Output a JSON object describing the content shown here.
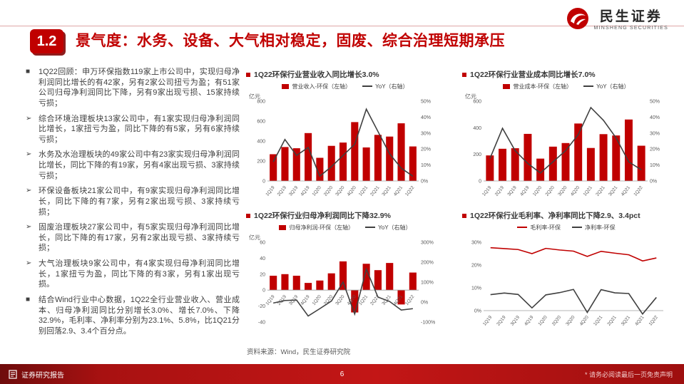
{
  "theme": {
    "accent": "#C00000",
    "bar_color": "#C00000",
    "line_color": "#404040",
    "text_color": "#404040"
  },
  "header": {
    "badge": "1.2",
    "title": "景气度：水务、设备、大气相对稳定，固废、综合治理短期承压",
    "logo": {
      "name": "民生证券",
      "subtitle": "MINSHENG SECURITIES"
    }
  },
  "bullets": [
    {
      "marker": "■",
      "text": "1Q22回顾：申万环保指数119家上市公司中，实现归母净利润同比增长的有42家，另有2家公司扭亏为盈；有51家公司归母净利润同比下降，另有9家出现亏损、15家持续亏损；"
    },
    {
      "marker": "➢",
      "text": "综合环境治理板块13家公司中，有1家实现归母净利润同比增长，1家扭亏为盈，同比下降的有5家，另有6家持续亏损；"
    },
    {
      "marker": "➢",
      "text": "水务及水治理板块的49家公司中有23家实现归母净利润同比增长，同比下降的有19家，另有4家出现亏损、3家持续亏损；"
    },
    {
      "marker": "➢",
      "text": "环保设备板块21家公司中，有9家实现归母净利润同比增长，同比下降的有7家，另有2家出现亏损、3家持续亏损；"
    },
    {
      "marker": "➢",
      "text": "固废治理板块27家公司中，有5家实现归母净利润同比增长，同比下降的有17家，另有2家出现亏损、3家持续亏损；"
    },
    {
      "marker": "➢",
      "text": "大气治理板块9家公司中，有4家实现归母净利润同比增长，1家扭亏为盈，同比下降的有3家，另有1家出现亏损。"
    },
    {
      "marker": "■",
      "text": "结合Wind行业中心数据，1Q22全行业营业收入、营业成本、归母净利润同比分别增长3.0%、增长7.0%、下降32.9%，毛利率、净利率分别为23.1%、5.8%，比1Q21分别回落2.9、3.4个百分点。"
    }
  ],
  "chart_data": [
    {
      "type": "bar+line",
      "title": "1Q22环保行业营业收入同比增长3.0%",
      "unit": "亿元",
      "categories": [
        "1Q19",
        "2Q19",
        "3Q19",
        "4Q19",
        "1Q20",
        "2Q20",
        "3Q20",
        "4Q20",
        "1Q21",
        "2Q21",
        "3Q21",
        "4Q21",
        "1Q22"
      ],
      "bars": {
        "name": "营业收入-环保（左轴）",
        "color": "#C00000",
        "values": [
          268,
          340,
          328,
          480,
          232,
          352,
          385,
          590,
          336,
          462,
          445,
          578,
          346
        ]
      },
      "lines": [
        {
          "name": "YoY（右轴）",
          "color": "#404040",
          "axis": "right",
          "values": [
            12,
            26,
            16,
            21,
            3,
            9,
            16,
            23,
            45,
            31,
            17,
            8,
            3
          ]
        }
      ],
      "left_axis": {
        "min": 0,
        "max": 800,
        "ticks": [
          0,
          200,
          400,
          600,
          800
        ],
        "suffix": ""
      },
      "right_axis": {
        "min": 0,
        "max": 50,
        "ticks": [
          0,
          10,
          20,
          30,
          40,
          50
        ],
        "suffix": "%"
      }
    },
    {
      "type": "bar+line",
      "title": "1Q22环保行业营业成本同比增长7.0%",
      "unit": "亿元",
      "categories": [
        "1Q19",
        "2Q19",
        "3Q19",
        "4Q19",
        "1Q20",
        "2Q20",
        "3Q20",
        "4Q20",
        "1Q21",
        "2Q21",
        "3Q21",
        "4Q21",
        "1Q22"
      ],
      "bars": {
        "name": "营业成本-环保（左轴）",
        "color": "#C00000",
        "values": [
          192,
          242,
          246,
          354,
          168,
          258,
          285,
          432,
          248,
          352,
          342,
          462,
          265
        ]
      },
      "lines": [
        {
          "name": "YoY（右轴）",
          "color": "#404040",
          "axis": "right",
          "values": [
            14,
            33,
            19,
            11,
            5,
            12,
            19,
            29,
            46,
            38,
            27,
            12,
            7
          ]
        }
      ],
      "left_axis": {
        "min": 0,
        "max": 600,
        "ticks": [
          0,
          200,
          400,
          600
        ],
        "suffix": ""
      },
      "right_axis": {
        "min": 0,
        "max": 50,
        "ticks": [
          0,
          10,
          20,
          30,
          40,
          50
        ],
        "suffix": "%"
      }
    },
    {
      "type": "bar+line",
      "title": "1Q22环保行业归母净利润同比下降32.9%",
      "unit": "亿元",
      "categories": [
        "1Q19",
        "2Q19",
        "3Q19",
        "4Q19",
        "1Q20",
        "2Q20",
        "3Q20",
        "4Q20",
        "1Q21",
        "2Q21",
        "3Q21",
        "4Q21",
        "1Q22"
      ],
      "bars": {
        "name": "归母净利润-环保（左轴）",
        "color": "#C00000",
        "values": [
          18,
          20,
          18,
          9,
          12,
          21,
          36,
          -28,
          33,
          25,
          34,
          -18,
          22
        ]
      },
      "lines": [
        {
          "name": "YoY（右轴）",
          "color": "#404040",
          "axis": "right",
          "values": [
            -5,
            8,
            10,
            -70,
            -33,
            5,
            100,
            -60,
            165,
            25,
            3,
            -40,
            -33
          ]
        }
      ],
      "left_axis": {
        "min": -40,
        "max": 60,
        "ticks": [
          -40,
          -20,
          0,
          20,
          40,
          60
        ],
        "suffix": ""
      },
      "right_axis": {
        "min": -100,
        "max": 300,
        "ticks": [
          -100,
          0,
          100,
          200,
          300
        ],
        "suffix": "%"
      }
    },
    {
      "type": "line",
      "title": "1Q22环保行业毛利率、净利率同比下降2.9、3.4pct",
      "unit": "",
      "categories": [
        "1Q19",
        "2Q19",
        "3Q19",
        "4Q19",
        "1Q20",
        "2Q20",
        "3Q20",
        "4Q20",
        "1Q21",
        "2Q21",
        "3Q21",
        "4Q21",
        "1Q22"
      ],
      "lines": [
        {
          "name": "毛利率-环保",
          "color": "#C00000",
          "axis": "left",
          "values": [
            27.6,
            27.2,
            26.8,
            25.0,
            27.3,
            26.6,
            26.1,
            23.8,
            26.0,
            25.2,
            24.5,
            21.8,
            23.1
          ]
        },
        {
          "name": "净利率-环保",
          "color": "#404040",
          "axis": "left",
          "values": [
            7.0,
            7.7,
            7.1,
            1.2,
            6.9,
            7.9,
            9.3,
            -0.8,
            9.2,
            7.8,
            7.5,
            -1.5,
            5.8
          ]
        }
      ],
      "left_axis": {
        "min": -5,
        "max": 30,
        "ticks": [
          0,
          10,
          20,
          30
        ],
        "suffix": "%"
      }
    }
  ],
  "source": "资料来源：Wind，民生证券研究院",
  "footer": {
    "left": "证券研究报告",
    "page": "6",
    "disclaimer": "* 请务必阅读最后一页免责声明"
  }
}
